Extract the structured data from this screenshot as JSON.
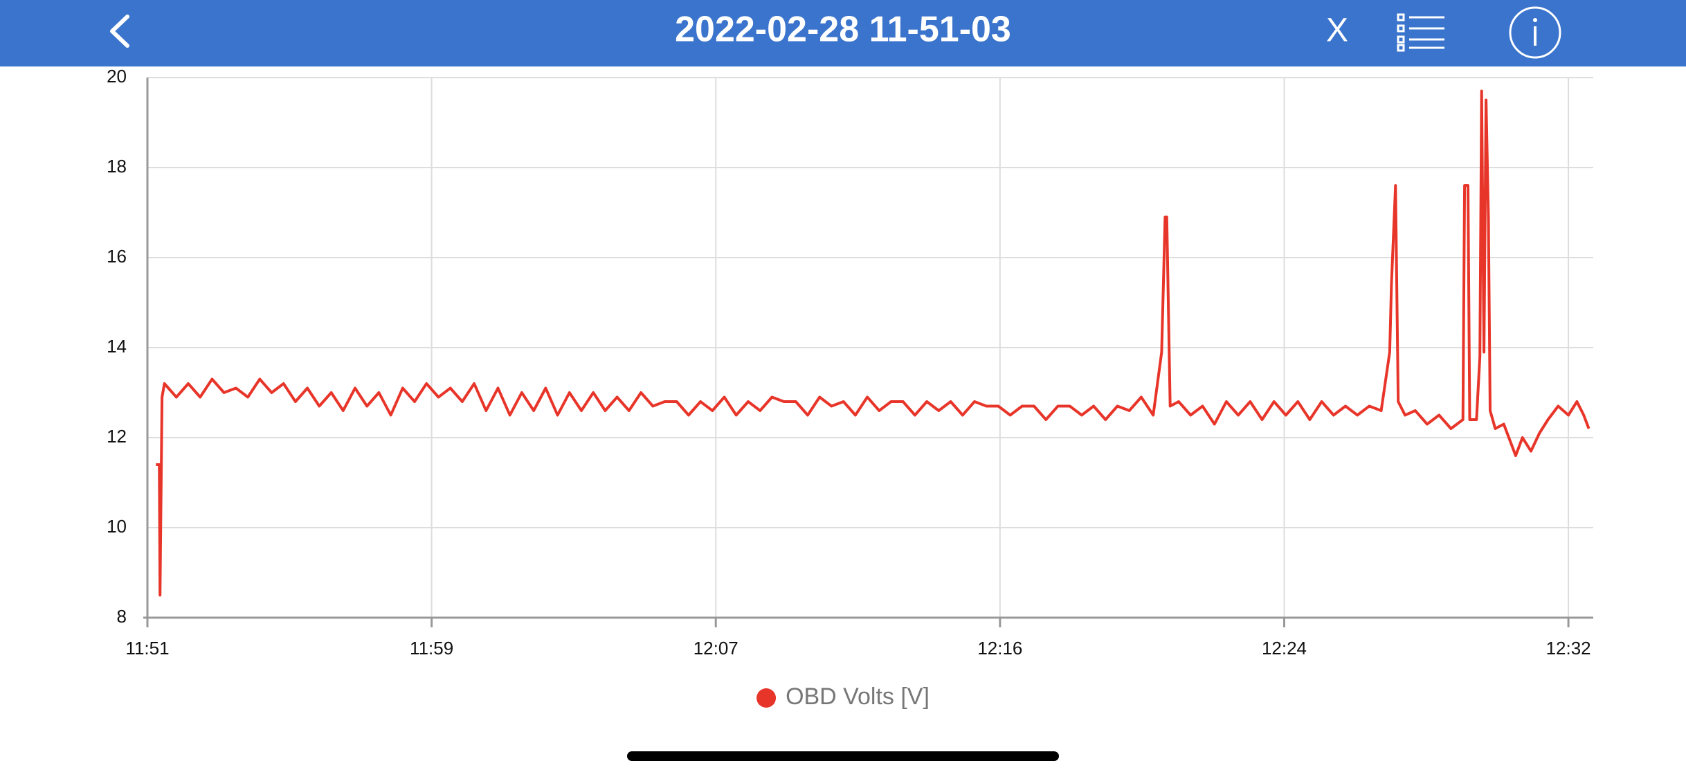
{
  "header": {
    "title": "2022-02-28 11-51-03",
    "close": "X"
  },
  "chart_data": {
    "type": "line",
    "x": [
      711.3,
      711.4,
      711.42,
      711.48,
      711.55,
      711.9,
      712.25,
      712.6,
      712.95,
      713.3,
      713.65,
      714.0,
      714.35,
      714.7,
      715.05,
      715.4,
      715.75,
      716.1,
      716.45,
      716.8,
      717.15,
      717.5,
      717.85,
      718.2,
      718.55,
      718.9,
      719.25,
      719.6,
      719.95,
      720.3,
      720.65,
      721.0,
      721.35,
      721.7,
      722.05,
      722.4,
      722.75,
      723.1,
      723.45,
      723.8,
      724.15,
      724.5,
      724.85,
      725.2,
      725.55,
      725.9,
      726.25,
      726.6,
      726.95,
      727.3,
      727.65,
      728.0,
      728.35,
      728.7,
      729.05,
      729.4,
      729.75,
      730.1,
      730.45,
      730.8,
      731.15,
      731.5,
      731.85,
      732.2,
      732.55,
      732.9,
      733.25,
      733.6,
      733.95,
      734.3,
      734.65,
      735.0,
      735.35,
      735.7,
      736.05,
      736.4,
      736.75,
      737.1,
      737.45,
      737.8,
      738.15,
      738.5,
      738.85,
      739.2,
      739.55,
      739.9,
      740.25,
      740.6,
      740.85,
      740.95,
      741.0,
      741.1,
      741.35,
      741.7,
      742.05,
      742.4,
      742.75,
      743.1,
      743.45,
      743.8,
      744.15,
      744.5,
      744.85,
      745.2,
      745.55,
      745.9,
      746.25,
      746.6,
      746.95,
      747.3,
      747.55,
      747.6,
      747.72,
      747.8,
      748.0,
      748.3,
      748.65,
      749.0,
      749.35,
      749.7,
      749.75,
      749.85,
      749.9,
      750.1,
      750.2,
      750.25,
      750.32,
      750.38,
      750.45,
      750.5,
      750.65,
      750.9,
      751.25,
      751.45,
      751.7,
      751.95,
      752.2,
      752.5,
      752.8,
      753.05,
      753.25,
      753.4
    ],
    "series": [
      {
        "name": "OBD Volts [V]",
        "color": "#e8352a",
        "values": [
          11.4,
          11.4,
          8.5,
          12.9,
          13.2,
          12.9,
          13.2,
          12.9,
          13.3,
          13.0,
          13.1,
          12.9,
          13.3,
          13.0,
          13.2,
          12.8,
          13.1,
          12.7,
          13.0,
          12.6,
          13.1,
          12.7,
          13.0,
          12.5,
          13.1,
          12.8,
          13.2,
          12.9,
          13.1,
          12.8,
          13.2,
          12.6,
          13.1,
          12.5,
          13.0,
          12.6,
          13.1,
          12.5,
          13.0,
          12.6,
          13.0,
          12.6,
          12.9,
          12.6,
          13.0,
          12.7,
          12.8,
          12.8,
          12.5,
          12.8,
          12.6,
          12.9,
          12.5,
          12.8,
          12.6,
          12.9,
          12.8,
          12.8,
          12.5,
          12.9,
          12.7,
          12.8,
          12.5,
          12.9,
          12.6,
          12.8,
          12.8,
          12.5,
          12.8,
          12.6,
          12.8,
          12.5,
          12.8,
          12.7,
          12.7,
          12.5,
          12.7,
          12.7,
          12.4,
          12.7,
          12.7,
          12.5,
          12.7,
          12.4,
          12.7,
          12.6,
          12.9,
          12.5,
          13.9,
          16.9,
          16.9,
          12.7,
          12.8,
          12.5,
          12.7,
          12.3,
          12.8,
          12.5,
          12.8,
          12.4,
          12.8,
          12.5,
          12.8,
          12.4,
          12.8,
          12.5,
          12.7,
          12.5,
          12.7,
          12.6,
          13.9,
          15.4,
          17.6,
          12.8,
          12.5,
          12.6,
          12.3,
          12.5,
          12.2,
          12.4,
          17.6,
          17.6,
          12.4,
          12.4,
          13.8,
          19.7,
          13.9,
          19.5,
          16.9,
          12.6,
          12.2,
          12.3,
          11.6,
          12.0,
          11.7,
          12.1,
          12.4,
          12.7,
          12.5,
          12.8,
          12.5,
          12.2
        ]
      }
    ],
    "xlim": [
      711.05,
      753.53
    ],
    "xticks": [
      {
        "value": 711.05,
        "label": "11:51"
      },
      {
        "value": 719.4,
        "label": "11:59"
      },
      {
        "value": 727.75,
        "label": "12:07"
      },
      {
        "value": 736.1,
        "label": "12:16"
      },
      {
        "value": 744.45,
        "label": "12:24"
      },
      {
        "value": 752.8,
        "label": "12:32"
      }
    ],
    "ylim": [
      8,
      20
    ],
    "yticks": [
      8,
      10,
      12,
      14,
      16,
      18,
      20
    ],
    "grid": true
  }
}
